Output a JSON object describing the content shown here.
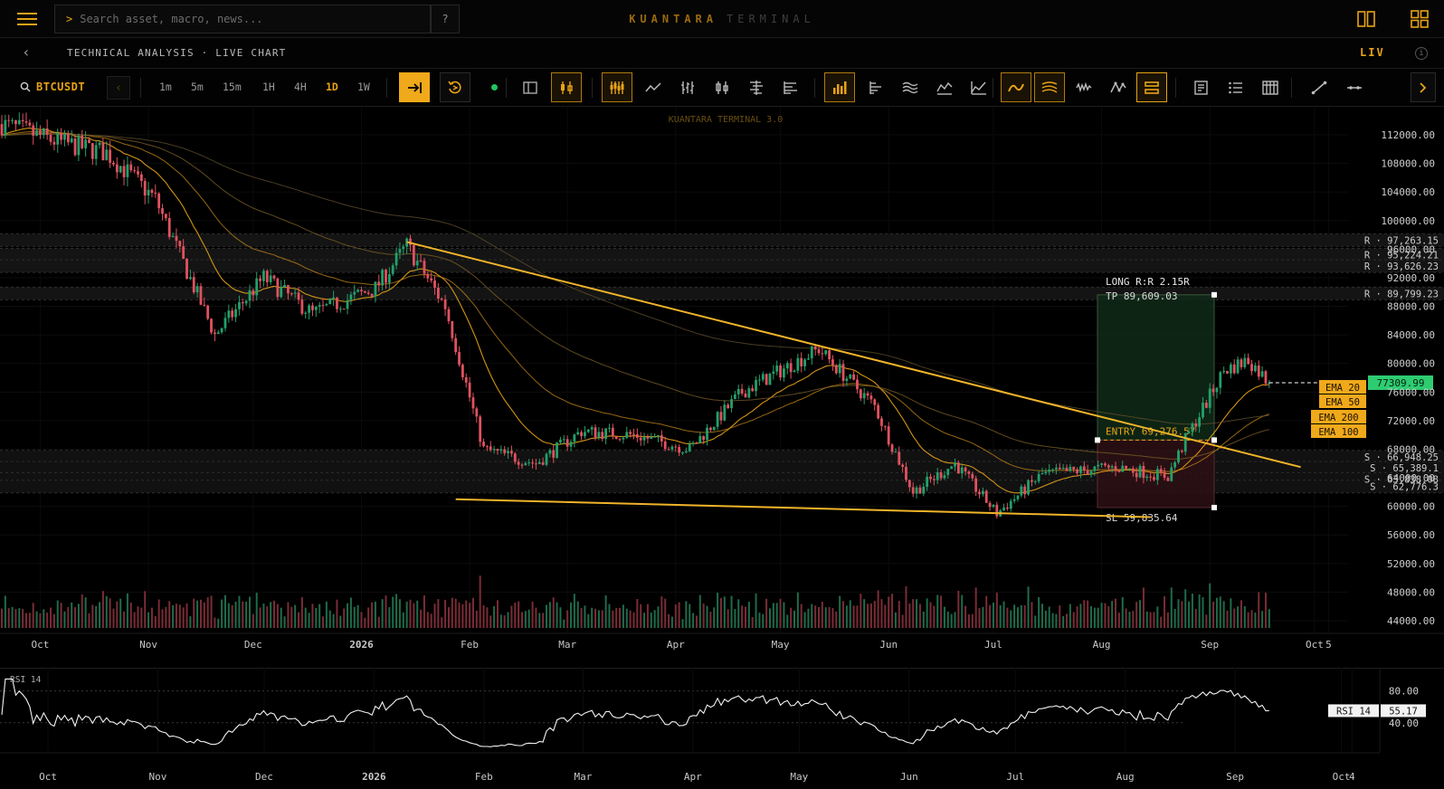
{
  "topbar": {
    "search_placeholder": "Search asset, macro, news...",
    "help_label": "?",
    "brand_primary": "KUANTARA",
    "brand_secondary": "TERMINAL"
  },
  "breadcrumb": {
    "title": "TECHNICAL ANALYSIS · LIVE CHART",
    "live_label": "LIV",
    "info_label": "i"
  },
  "toolbar": {
    "symbol": "BTCUSDT",
    "timeframes": [
      "1m",
      "5m",
      "15m",
      "1H",
      "4H",
      "1D",
      "1W"
    ],
    "active_timeframe": "1D"
  },
  "chart": {
    "watermark": "KUANTARA TERMINAL 3.0",
    "price_ticks": [
      "112000.00",
      "108000.00",
      "104000.00",
      "100000.00",
      "96000.00",
      "92000.00",
      "88000.00",
      "84000.00",
      "80000.00",
      "76000.00",
      "72000.00",
      "68000.00",
      "64000.00",
      "60000.00",
      "56000.00",
      "52000.00",
      "48000.00",
      "44000.00"
    ],
    "time_ticks": [
      "Oct",
      "Nov",
      "Dec",
      "2026",
      "Feb",
      "Mar",
      "Apr",
      "May",
      "Jun",
      "Jul",
      "Aug",
      "Sep",
      "Oct",
      "5"
    ],
    "resistance_labels": [
      "R · 97,263.15",
      "R · 95,224.21",
      "R · 93,626.23",
      "R · 89,799.23"
    ],
    "support_labels": [
      "S · 66,948.25",
      "S · 65,389.1",
      "S · 63,838.08",
      "S · 62,776.3"
    ],
    "trade": {
      "header": "LONG R:R  2.15R",
      "tp": "TP 89,609.03",
      "entry": "ENTRY 69,276.57",
      "sl": "SL 59,835.64"
    },
    "last_price": "77309.99",
    "ema_labels": [
      "EMA 20",
      "EMA 50",
      "EMA 200",
      "EMA 100"
    ]
  },
  "rsi": {
    "title": "RSI 14",
    "ticks": [
      "80.00",
      "40.00"
    ],
    "badge_label": "RSI 14",
    "badge_value": "55.17",
    "time_ticks": [
      "Oct",
      "Nov",
      "Dec",
      "2026",
      "Feb",
      "Mar",
      "Apr",
      "May",
      "Jun",
      "Jul",
      "Aug",
      "Sep",
      "Oct",
      "4"
    ]
  },
  "colors": {
    "accent": "#e8a317",
    "up": "#22a06b",
    "down": "#e0525f",
    "last_price": "#2ecc71"
  },
  "chart_data": {
    "type": "candlestick",
    "title": "",
    "symbol": "BTCUSDT",
    "interval": "1D",
    "ylim": [
      42000,
      114000
    ],
    "x_range": [
      "2025-09-20",
      "2026-10-08"
    ],
    "ohlc_anchors": [
      {
        "date": "2025-09-20",
        "close": 113500
      },
      {
        "date": "2025-10-06",
        "close": 111000
      },
      {
        "date": "2025-10-20",
        "close": 109500
      },
      {
        "date": "2025-11-03",
        "close": 103000
      },
      {
        "date": "2025-11-20",
        "close": 84000
      },
      {
        "date": "2025-12-04",
        "close": 92000
      },
      {
        "date": "2025-12-18",
        "close": 87000
      },
      {
        "date": "2026-01-05",
        "close": 90500
      },
      {
        "date": "2026-01-14",
        "close": 96500
      },
      {
        "date": "2026-01-25",
        "close": 88000
      },
      {
        "date": "2026-02-05",
        "close": 68000
      },
      {
        "date": "2026-02-20",
        "close": 66000
      },
      {
        "date": "2026-03-05",
        "close": 70500
      },
      {
        "date": "2026-03-20",
        "close": 70000
      },
      {
        "date": "2026-04-05",
        "close": 68000
      },
      {
        "date": "2026-04-20",
        "close": 76000
      },
      {
        "date": "2026-05-12",
        "close": 82000
      },
      {
        "date": "2026-05-28",
        "close": 74000
      },
      {
        "date": "2026-06-08",
        "close": 62000
      },
      {
        "date": "2026-06-20",
        "close": 66000
      },
      {
        "date": "2026-07-02",
        "close": 59000
      },
      {
        "date": "2026-07-15",
        "close": 64500
      },
      {
        "date": "2026-08-05",
        "close": 65500
      },
      {
        "date": "2026-08-20",
        "close": 64200
      },
      {
        "date": "2026-08-25",
        "close": 69300
      },
      {
        "date": "2026-09-05",
        "close": 79000
      },
      {
        "date": "2026-09-12",
        "close": 80500
      },
      {
        "date": "2026-09-18",
        "close": 77310
      }
    ],
    "resistance_levels": [
      97263.15,
      95224.21,
      93626.23,
      89799.23
    ],
    "support_levels": [
      66948.25,
      65389.1,
      63838.08,
      62776.3
    ],
    "trade": {
      "side": "long",
      "tp": 89609.03,
      "entry": 69276.57,
      "sl": 59835.64,
      "rr": 2.15
    },
    "last_price": 77309.99,
    "trendlines": [
      {
        "from": [
          "2026-01-14",
          97000
        ],
        "to": [
          "2026-09-27",
          65500
        ]
      },
      {
        "from": [
          "2026-01-28",
          61000
        ],
        "to": [
          "2026-08-15",
          58500
        ]
      }
    ],
    "rsi": {
      "period": 14,
      "current": 55.17,
      "levels": [
        80,
        40
      ]
    }
  }
}
